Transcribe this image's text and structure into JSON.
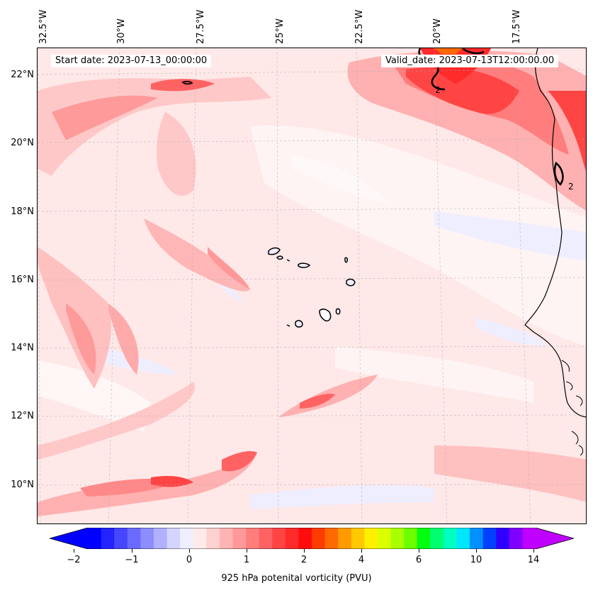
{
  "header": {
    "start_date": "Start date: 2023-07-13_00:00:00",
    "valid_date": "Valid_date: 2023-07-13T12:00:00.00"
  },
  "lon_labels": [
    "32.5°W",
    "30°W",
    "27.5°W",
    "25°W",
    "22.5°W",
    "20°W",
    "17.5°W"
  ],
  "lat_labels": [
    "22°N",
    "20°N",
    "18°N",
    "16°N",
    "14°N",
    "12°N",
    "10°N"
  ],
  "contour_labels": [
    "2",
    "2"
  ],
  "colorbar": {
    "label": "925 hPa potenital vorticity (PVU)",
    "ticks": [
      "−2",
      "−1",
      "0",
      "1",
      "2",
      "4",
      "6",
      "10",
      "14"
    ],
    "colors": [
      "#0000ff",
      "#2323ff",
      "#4646ff",
      "#6a6aff",
      "#8d8dff",
      "#b0b0ff",
      "#d4d4ff",
      "#eeeeff",
      "#ffeaea",
      "#ffd0d0",
      "#ffb4b4",
      "#ff9999",
      "#ff7d7d",
      "#ff6262",
      "#ff4444",
      "#ff2a2a",
      "#ff0d0d",
      "#ff3b00",
      "#ff6a00",
      "#ff9a00",
      "#ffc800",
      "#fff000",
      "#dcff00",
      "#a8ff00",
      "#6cff00",
      "#00ff10",
      "#00ff70",
      "#00ffc0",
      "#00e6ff",
      "#0090ff",
      "#0040ff",
      "#3000ff",
      "#8000ff",
      "#c000ff"
    ],
    "under_color": "#0000ff",
    "over_color": "#c000ff"
  }
}
